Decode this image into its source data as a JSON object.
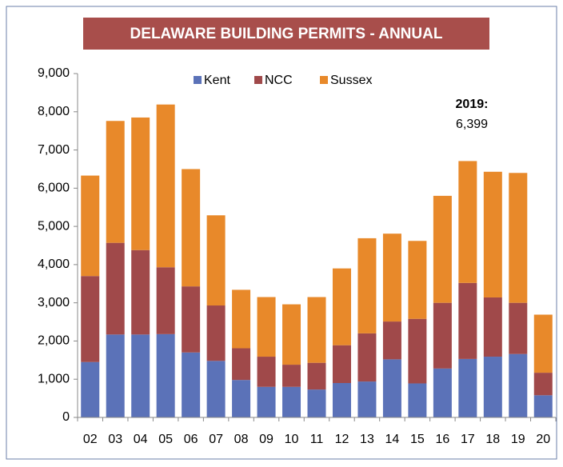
{
  "chart_data": {
    "type": "stacked_bar",
    "title": "DELAWARE BUILDING PERMITS - ANNUAL",
    "categories": [
      "02",
      "03",
      "04",
      "05",
      "06",
      "07",
      "08",
      "09",
      "10",
      "11",
      "12",
      "13",
      "14",
      "15",
      "16",
      "17",
      "18",
      "19",
      "20"
    ],
    "series": [
      {
        "name": "Kent",
        "color": "#5b72b8",
        "values": [
          1450,
          2170,
          2170,
          2180,
          1700,
          1480,
          980,
          800,
          800,
          730,
          900,
          940,
          1520,
          890,
          1280,
          1530,
          1590,
          1660,
          580
        ]
      },
      {
        "name": "NCC",
        "color": "#a0494a",
        "values": [
          2250,
          2400,
          2210,
          1750,
          1730,
          1450,
          830,
          790,
          580,
          700,
          990,
          1260,
          990,
          1690,
          1720,
          1990,
          1550,
          1340,
          590
        ]
      },
      {
        "name": "Sussex",
        "color": "#e8892a",
        "values": [
          2630,
          3190,
          3470,
          4260,
          3070,
          2360,
          1530,
          1560,
          1580,
          1720,
          2010,
          2490,
          2300,
          2040,
          2800,
          3190,
          3290,
          3399,
          1520
        ]
      }
    ],
    "ylim": [
      0,
      9000
    ],
    "yticks": [
      0,
      {
        "value": 1000,
        "label": "1,000"
      },
      {
        "value": 2000,
        "label": "2,000"
      },
      {
        "value": 3000,
        "label": "3,000"
      },
      {
        "value": 4000,
        "label": "4,000"
      },
      {
        "value": 5000,
        "label": "5,000"
      },
      {
        "value": 6000,
        "label": "6,000"
      },
      {
        "value": 7000,
        "label": "7,000"
      },
      {
        "value": 8000,
        "label": "8,000"
      },
      {
        "value": 9000,
        "label": "9,000"
      }
    ],
    "annotation": {
      "label": "2019:",
      "value": "6,399"
    },
    "grid": false
  }
}
